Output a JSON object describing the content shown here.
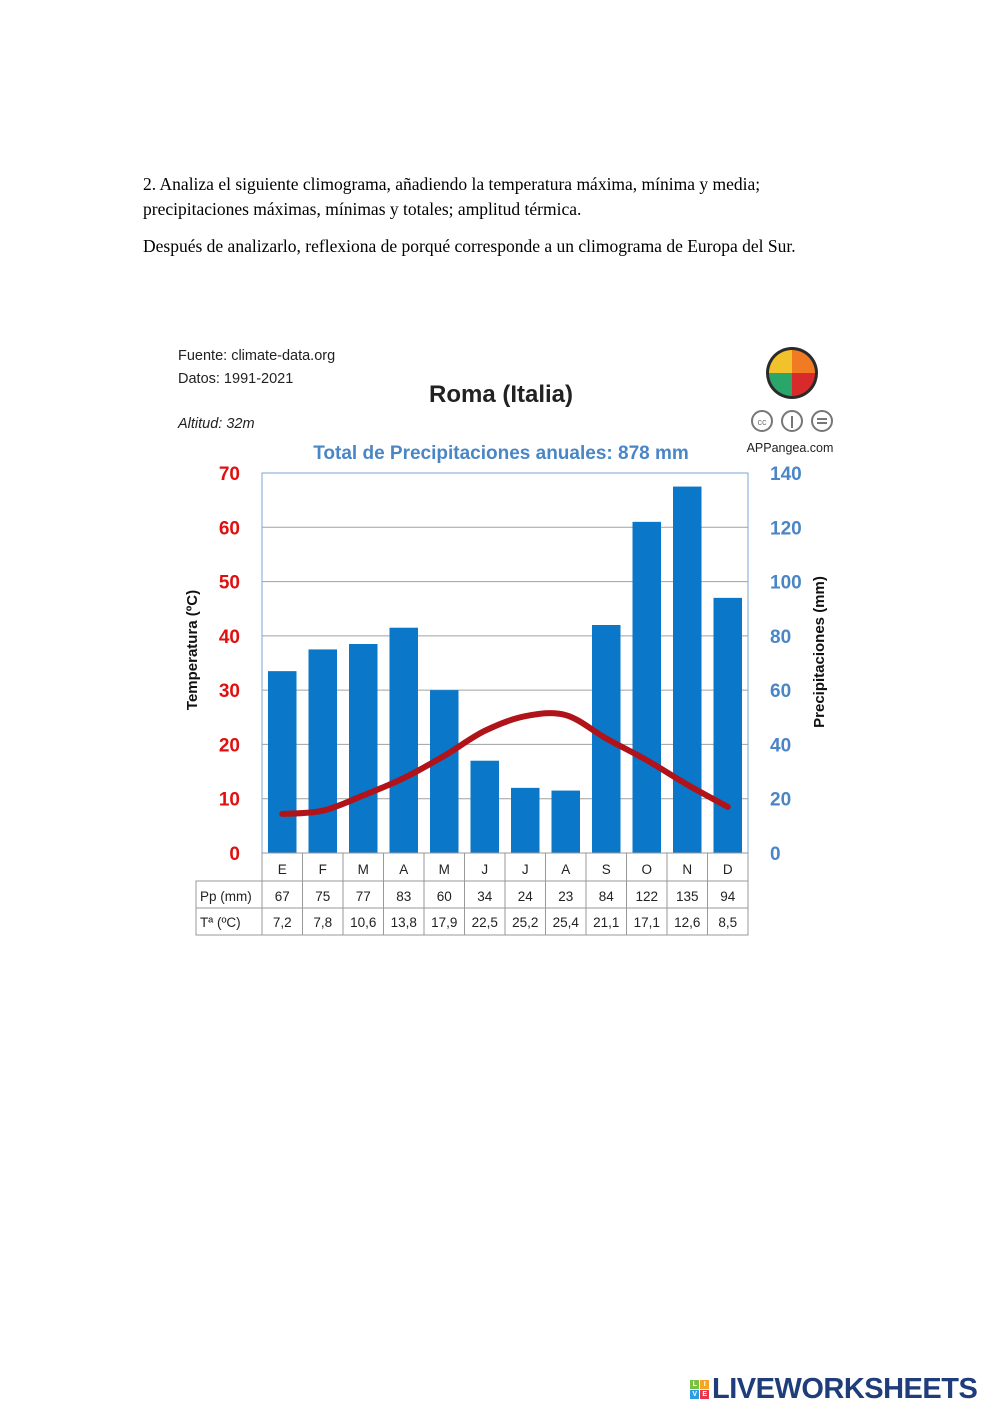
{
  "instructions": {
    "q1": "2. Analiza el siguiente climograma, añadiendo la temperatura máxima, mínima y media; precipitaciones máximas, mínimas y totales; amplitud térmica.",
    "q2": "Después de analizarlo, reflexiona de porqué corresponde a un climograma de Europa del Sur."
  },
  "chart_data": {
    "type": "bar+line",
    "title": "Roma (Italia)",
    "subtitle": "Total de Precipitaciones anuales: 878 mm",
    "source": "Fuente: climate-data.org",
    "data_period": "Datos: 1991-2021",
    "altitude": "Altitud: 32m",
    "brand": "APPangea.com",
    "ylabel_left": "Temperatura (ºC)",
    "ylabel_right": "Precipitaciones (mm)",
    "ylim_left": [
      0,
      70
    ],
    "ylim_right": [
      0,
      140
    ],
    "yticks_left": [
      "0",
      "10",
      "20",
      "30",
      "40",
      "50",
      "60",
      "70"
    ],
    "yticks_right": [
      "0",
      "20",
      "40",
      "60",
      "80",
      "100",
      "120",
      "140"
    ],
    "categories": [
      "E",
      "F",
      "M",
      "A",
      "M",
      "J",
      "J",
      "A",
      "S",
      "O",
      "N",
      "D"
    ],
    "series": [
      {
        "name": "Pp (mm)",
        "type": "bar",
        "axis": "right",
        "values": [
          67,
          75,
          77,
          83,
          60,
          34,
          24,
          23,
          84,
          122,
          135,
          94
        ]
      },
      {
        "name": "Tª (ºC)",
        "type": "line",
        "axis": "left",
        "values": [
          7.2,
          7.8,
          10.6,
          13.8,
          17.9,
          22.5,
          25.2,
          25.4,
          21.1,
          17.1,
          12.6,
          8.5
        ]
      }
    ],
    "table_labels": [
      "Pp (mm)",
      "Tª (ºC)"
    ],
    "table_values_text": {
      "pp": [
        "67",
        "75",
        "77",
        "83",
        "60",
        "34",
        "24",
        "23",
        "84",
        "122",
        "135",
        "94"
      ],
      "t": [
        "7,2",
        "7,8",
        "10,6",
        "13,8",
        "17,9",
        "22,5",
        "25,2",
        "25,4",
        "21,1",
        "17,1",
        "12,6",
        "8,5"
      ]
    },
    "grid": true,
    "colors": {
      "bar": "#0a77c8",
      "line": "#b01319",
      "left_axis": "#e01010",
      "right_axis": "#4a86c5"
    }
  },
  "footer": {
    "brand": "LIVEWORKSHEETS",
    "logo_letters": [
      "L",
      "I",
      "V",
      "E"
    ]
  }
}
